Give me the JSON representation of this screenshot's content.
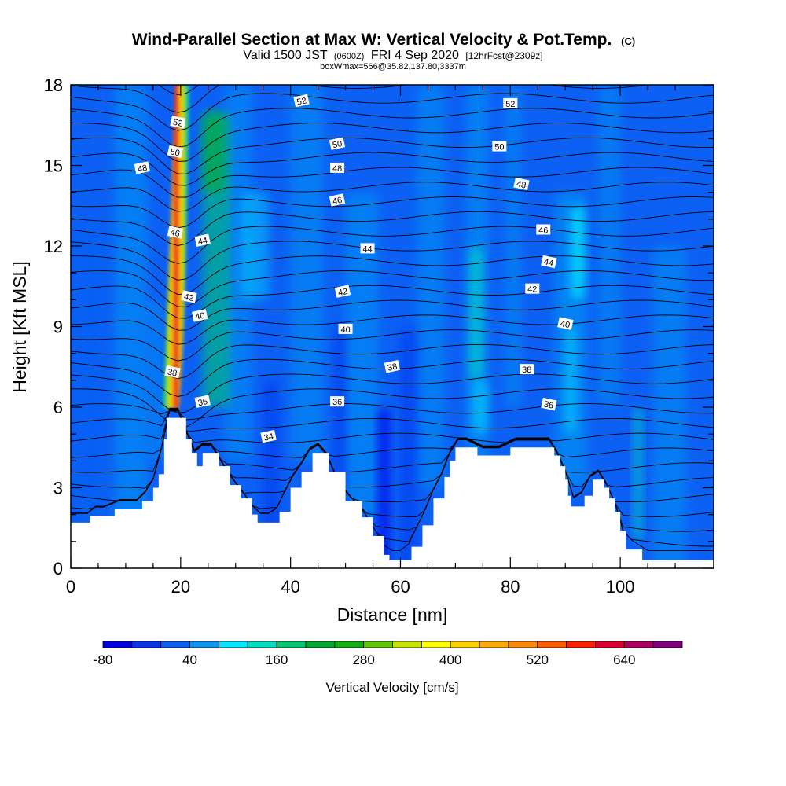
{
  "chart_data": {
    "type": "contour-cross-section",
    "title": "Wind-Parallel Section at Max W: Vertical Velocity & Pot.Temp.",
    "title_suffix": "(C)",
    "subtitle_main": "Valid 1500 JST",
    "subtitle_utc": "(0600Z)",
    "subtitle_date": "FRI 4 Sep 2020",
    "subtitle_fcst": "[12hrFcst@2309z]",
    "subtitle_box": "boxWmax=566@35.82,137.80,3337m",
    "xlabel": "Distance [nm]",
    "ylabel": "Height [Kft MSL]",
    "xlim": [
      0,
      117
    ],
    "ylim": [
      0,
      18
    ],
    "x_ticks": [
      "0",
      "20",
      "40",
      "60",
      "80",
      "100"
    ],
    "x_tick_values": [
      0,
      20,
      40,
      60,
      80,
      100
    ],
    "y_ticks": [
      "0",
      "3",
      "6",
      "9",
      "12",
      "15",
      "18"
    ],
    "y_tick_values": [
      0,
      3,
      6,
      9,
      12,
      15,
      18
    ],
    "colorbar": {
      "label": "Vertical Velocity [cm/s]",
      "tick_labels": [
        "-80",
        "40",
        "160",
        "280",
        "400",
        "520",
        "640"
      ],
      "tick_values": [
        -80,
        40,
        160,
        280,
        400,
        520,
        640
      ],
      "levels": [
        -80,
        -40,
        0,
        40,
        80,
        120,
        160,
        200,
        240,
        280,
        320,
        360,
        400,
        440,
        480,
        520,
        560,
        600,
        640,
        680,
        720
      ],
      "colors": [
        "#0000e8",
        "#0a34f0",
        "#0c60f4",
        "#0a96f4",
        "#00e8ff",
        "#00e0c0",
        "#00c870",
        "#00aa30",
        "#10b010",
        "#60c800",
        "#c8e400",
        "#ffff00",
        "#ffd000",
        "#ffaa00",
        "#ff8800",
        "#ff5a00",
        "#ff2000",
        "#e00030",
        "#b00060",
        "#800080"
      ]
    },
    "potential_temperature_isolines": [
      34,
      36,
      38,
      40,
      42,
      44,
      46,
      48,
      50,
      52
    ],
    "contour_labels": [
      {
        "text": "52",
        "x": 42,
        "y": 17.4
      },
      {
        "text": "52",
        "x": 80,
        "y": 17.3
      },
      {
        "text": "52",
        "x": 19.5,
        "y": 16.6
      },
      {
        "text": "50",
        "x": 48.5,
        "y": 15.8
      },
      {
        "text": "50",
        "x": 78,
        "y": 15.7
      },
      {
        "text": "50",
        "x": 19,
        "y": 15.5
      },
      {
        "text": "48",
        "x": 13,
        "y": 14.9
      },
      {
        "text": "48",
        "x": 48.5,
        "y": 14.9
      },
      {
        "text": "48",
        "x": 82,
        "y": 14.3
      },
      {
        "text": "46",
        "x": 48.5,
        "y": 13.7
      },
      {
        "text": "46",
        "x": 86,
        "y": 12.6
      },
      {
        "text": "46",
        "x": 19,
        "y": 12.5
      },
      {
        "text": "44",
        "x": 24,
        "y": 12.2
      },
      {
        "text": "44",
        "x": 54,
        "y": 11.9
      },
      {
        "text": "44",
        "x": 87,
        "y": 11.4
      },
      {
        "text": "42",
        "x": 49.5,
        "y": 10.3
      },
      {
        "text": "42",
        "x": 84,
        "y": 10.4
      },
      {
        "text": "42",
        "x": 21.5,
        "y": 10.1
      },
      {
        "text": "40",
        "x": 23.5,
        "y": 9.4
      },
      {
        "text": "40",
        "x": 50,
        "y": 8.9
      },
      {
        "text": "40",
        "x": 90,
        "y": 9.1
      },
      {
        "text": "38",
        "x": 58.5,
        "y": 7.5
      },
      {
        "text": "38",
        "x": 83,
        "y": 7.4
      },
      {
        "text": "38",
        "x": 18.5,
        "y": 7.3
      },
      {
        "text": "36",
        "x": 24,
        "y": 6.2
      },
      {
        "text": "36",
        "x": 48.5,
        "y": 6.2
      },
      {
        "text": "36",
        "x": 87,
        "y": 6.1
      },
      {
        "text": "34",
        "x": 36,
        "y": 4.9
      }
    ],
    "terrain_profile": [
      [
        0,
        1.7
      ],
      [
        3,
        1.7
      ],
      [
        3.5,
        1.95
      ],
      [
        7,
        1.95
      ],
      [
        8,
        2.2
      ],
      [
        12,
        2.2
      ],
      [
        13,
        2.5
      ],
      [
        14,
        2.5
      ],
      [
        15,
        3.0
      ],
      [
        16,
        3.5
      ],
      [
        17,
        4.8
      ],
      [
        17.5,
        5.6
      ],
      [
        20,
        5.6
      ],
      [
        21,
        4.8
      ],
      [
        22,
        4.3
      ],
      [
        23,
        3.8
      ],
      [
        24,
        4.3
      ],
      [
        25.5,
        4.3
      ],
      [
        27,
        3.8
      ],
      [
        29,
        3.1
      ],
      [
        31,
        2.6
      ],
      [
        33,
        2.0
      ],
      [
        34,
        1.7
      ],
      [
        37,
        1.7
      ],
      [
        38,
        2.1
      ],
      [
        40,
        3.0
      ],
      [
        42,
        3.6
      ],
      [
        44,
        4.3
      ],
      [
        46,
        4.3
      ],
      [
        47,
        3.6
      ],
      [
        50,
        2.5
      ],
      [
        53,
        1.9
      ],
      [
        55,
        1.2
      ],
      [
        57,
        0.5
      ],
      [
        58,
        0.3
      ],
      [
        61,
        0.3
      ],
      [
        62,
        0.8
      ],
      [
        64,
        1.6
      ],
      [
        66,
        2.6
      ],
      [
        68,
        3.4
      ],
      [
        69,
        4.0
      ],
      [
        70,
        4.5
      ],
      [
        73,
        4.5
      ],
      [
        74,
        4.2
      ],
      [
        79,
        4.2
      ],
      [
        80,
        4.5
      ],
      [
        87,
        4.5
      ],
      [
        88,
        4.2
      ],
      [
        89,
        3.8
      ],
      [
        90,
        3.3
      ],
      [
        90.5,
        2.7
      ],
      [
        91,
        2.3
      ],
      [
        92.5,
        2.3
      ],
      [
        93.5,
        2.7
      ],
      [
        95,
        3.3
      ],
      [
        96,
        3.3
      ],
      [
        97,
        3.0
      ],
      [
        98,
        2.6
      ],
      [
        99,
        2.1
      ],
      [
        100,
        1.4
      ],
      [
        101,
        0.7
      ],
      [
        103,
        0.7
      ],
      [
        104,
        0.3
      ],
      [
        117,
        0.3
      ]
    ]
  }
}
